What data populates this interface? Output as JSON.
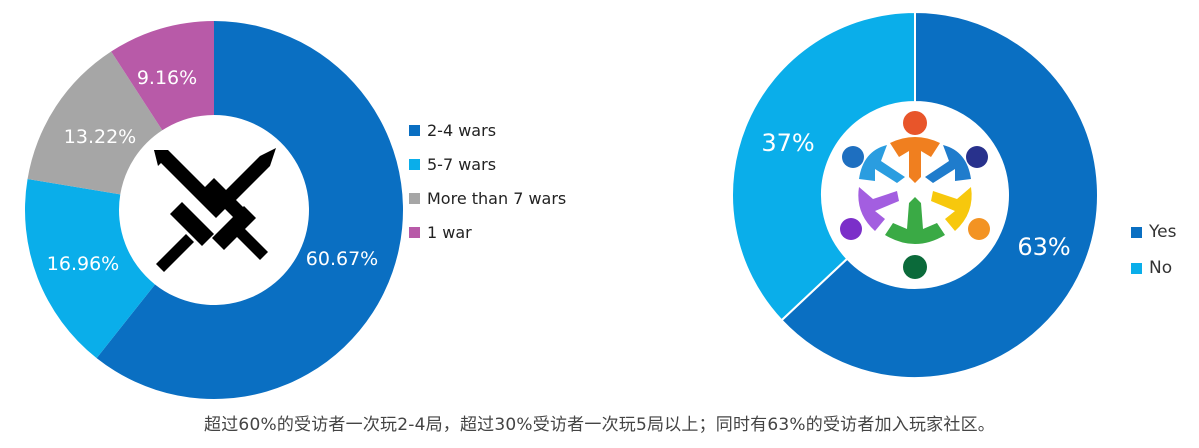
{
  "caption": "超过60%的受访者一次玩2-4局，超过30%受访者一次玩5局以上；同时有63%的受访者加入玩家社区。",
  "chart_data": [
    {
      "type": "pie",
      "variant": "donut",
      "title": "",
      "center_icon": "crossed-swords-icon",
      "categories": [
        "2-4 wars",
        "5-7 wars",
        "More than 7 wars",
        "1 war"
      ],
      "values": [
        60.67,
        16.96,
        13.22,
        9.16
      ],
      "labels": [
        "60.67%",
        "16.96%",
        "13.22%",
        "9.16%"
      ],
      "colors": [
        "#0a6fc2",
        "#0aaeea",
        "#a6a6a6",
        "#b85aa8"
      ],
      "start_angle": "top",
      "direction": "clockwise",
      "legend_position": "right"
    },
    {
      "type": "pie",
      "variant": "donut",
      "title": "",
      "center_icon": "community-people-icon",
      "categories": [
        "Yes",
        "No"
      ],
      "values": [
        63,
        37
      ],
      "labels": [
        "63%",
        "37%"
      ],
      "colors": [
        "#0a6fc2",
        "#0aaeea"
      ],
      "start_angle": "top",
      "direction": "clockwise",
      "legend_position": "right"
    }
  ]
}
